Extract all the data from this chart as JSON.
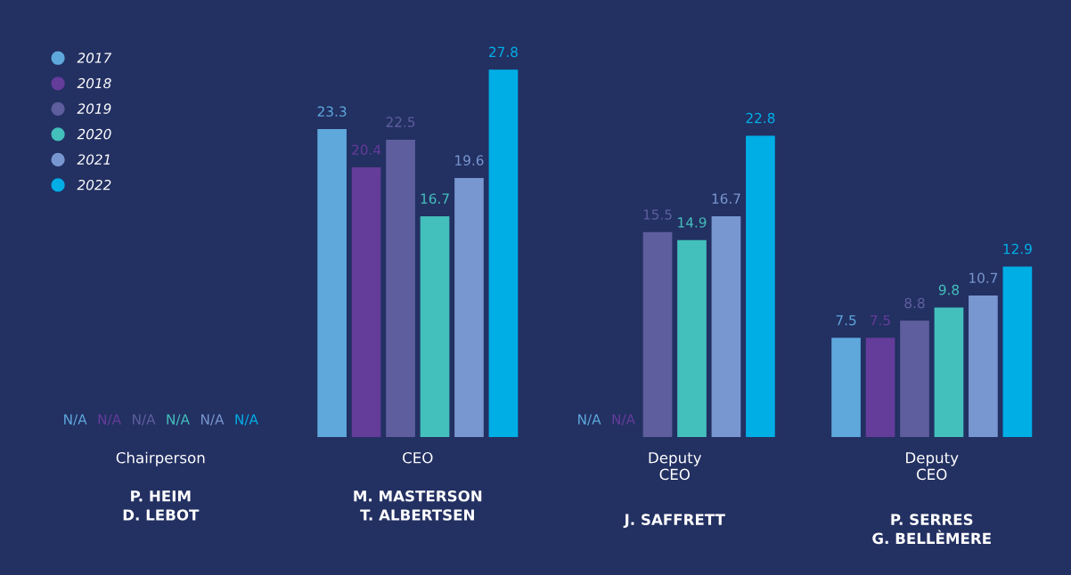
{
  "chart_data": {
    "type": "bar",
    "categories": [
      "Chairperson",
      "CEO",
      "Deputy\nCEO",
      "Deputy\nCEO"
    ],
    "annotations": [
      "P. HEIM\nD. LEBOT",
      "M. MASTERSON\nT. ALBERTSEN",
      "J. SAFFRETT",
      "P. SERRES\nG. BELLÈMERE"
    ],
    "series": [
      {
        "name": "2017",
        "color": "#5ea8dc",
        "values": [
          null,
          23.3,
          null,
          7.5
        ],
        "value_labels": [
          "N/A",
          "23.3",
          "N/A",
          "7.5"
        ]
      },
      {
        "name": "2018",
        "color": "#643c9a",
        "values": [
          null,
          20.4,
          null,
          7.5
        ],
        "value_labels": [
          "N/A",
          "20.4",
          "N/A",
          "7.5"
        ]
      },
      {
        "name": "2019",
        "color": "#5e5e9e",
        "values": [
          null,
          22.5,
          15.5,
          8.8
        ],
        "value_labels": [
          "N/A",
          "22.5",
          "15.5",
          "8.8"
        ]
      },
      {
        "name": "2020",
        "color": "#43c0bc",
        "values": [
          null,
          16.7,
          14.9,
          9.8
        ],
        "value_labels": [
          "N/A",
          "16.7",
          "14.9",
          "9.8"
        ]
      },
      {
        "name": "2021",
        "color": "#7897d0",
        "values": [
          null,
          19.6,
          16.7,
          10.7
        ],
        "value_labels": [
          "N/A",
          "19.6",
          "16.7",
          "10.7"
        ]
      },
      {
        "name": "2022",
        "color": "#00aee6",
        "values": [
          null,
          27.8,
          22.8,
          12.9
        ],
        "value_labels": [
          "N/A",
          "27.8",
          "22.8",
          "12.9"
        ]
      }
    ],
    "legend": "top left"
  }
}
